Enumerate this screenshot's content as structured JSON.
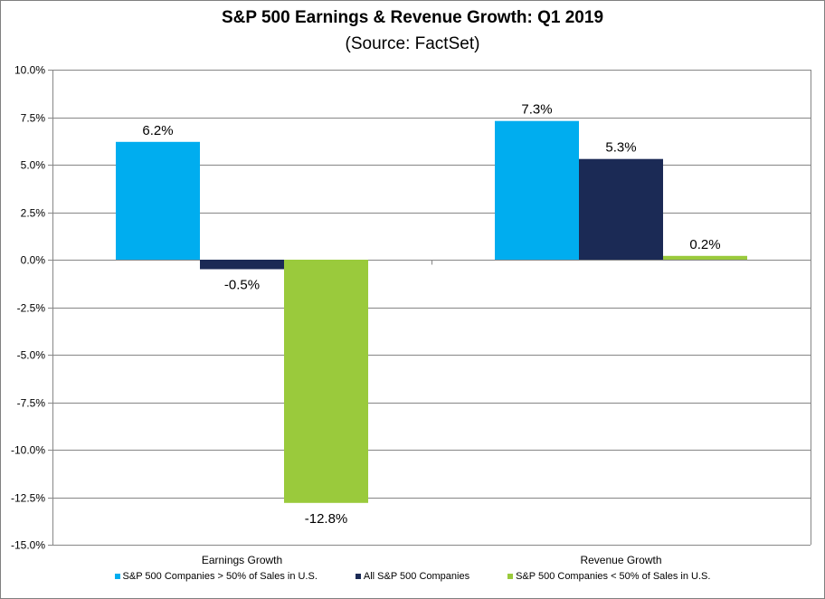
{
  "chart_data": {
    "type": "bar",
    "title": "S&P 500 Earnings & Revenue Growth: Q1 2019",
    "subtitle": "(Source: FactSet)",
    "categories": [
      "Earnings Growth",
      "Revenue Growth"
    ],
    "series": [
      {
        "name": "S&P 500 Companies > 50% of Sales in U.S.",
        "values": [
          6.2,
          7.3
        ],
        "labels": [
          "6.2%",
          "7.3%"
        ],
        "color": "#00ADEF"
      },
      {
        "name": "All S&P 500 Companies",
        "values": [
          -0.5,
          5.3
        ],
        "labels": [
          "-0.5%",
          "5.3%"
        ],
        "color": "#1B2A55"
      },
      {
        "name": "S&P 500 Companies < 50% of Sales in U.S.",
        "values": [
          -12.8,
          0.2
        ],
        "labels": [
          "-12.8%",
          "0.2%"
        ],
        "color": "#9ACA3C"
      }
    ],
    "ylim": [
      -15,
      10
    ],
    "yticks": [
      "10.0%",
      "7.5%",
      "5.0%",
      "2.5%",
      "0.0%",
      "-2.5%",
      "-5.0%",
      "-7.5%",
      "-10.0%",
      "-12.5%",
      "-15.0%"
    ],
    "ytick_values": [
      10,
      7.5,
      5,
      2.5,
      0,
      -2.5,
      -5,
      -7.5,
      -10,
      -12.5,
      -15
    ],
    "grid": true,
    "legend": "bottom"
  }
}
